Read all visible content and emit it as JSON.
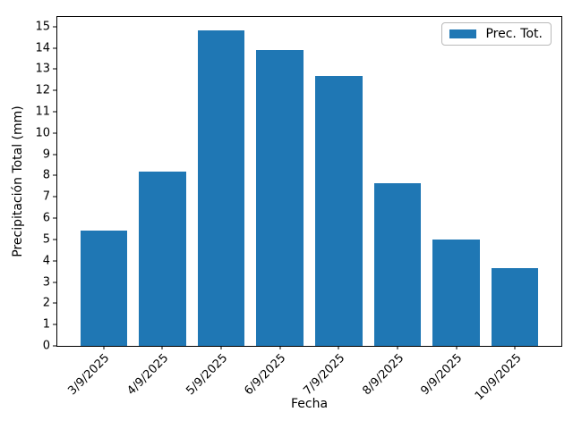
{
  "chart_data": {
    "type": "bar",
    "title": "",
    "xlabel": "Fecha",
    "ylabel": "Precipitación Total (mm)",
    "categories": [
      "3/9/2025",
      "4/9/2025",
      "5/9/2025",
      "6/9/2025",
      "7/9/2025",
      "8/9/2025",
      "9/9/2025",
      "10/9/2025"
    ],
    "values": [
      5.4,
      8.2,
      14.8,
      13.9,
      12.7,
      7.65,
      5.0,
      3.65
    ],
    "yticks": [
      0,
      1,
      2,
      3,
      4,
      5,
      6,
      7,
      8,
      9,
      10,
      11,
      12,
      13,
      14,
      15
    ],
    "ylim": [
      0,
      15.45
    ],
    "layout": {
      "slots": 8,
      "edge_pad": 0.79,
      "bar_width_slots": 0.8
    },
    "grid": false,
    "legend": {
      "label": "Prec. Tot.",
      "position": "upper right"
    },
    "colors": {
      "bar": "#1f77b4",
      "axis": "#000000",
      "legend_border": "#b9b9b9",
      "background": "#ffffff"
    }
  }
}
